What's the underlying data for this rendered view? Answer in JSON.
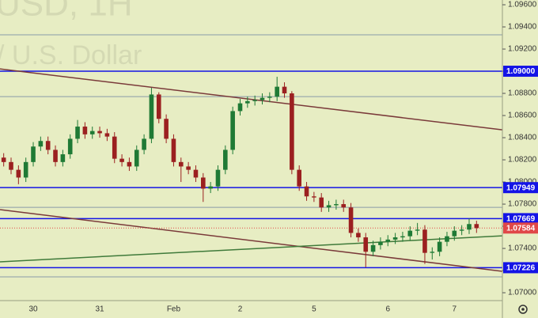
{
  "chart_data": {
    "type": "candlestick",
    "watermark": "USD, 1H",
    "watermark_subtitle": "/ U.S. Dollar",
    "categories": [
      null,
      null,
      null,
      null,
      "30",
      null,
      null,
      null,
      null,
      null,
      null,
      null,
      null,
      "31",
      null,
      null,
      null,
      null,
      null,
      null,
      null,
      null,
      null,
      "Feb",
      null,
      null,
      null,
      null,
      null,
      null,
      null,
      null,
      "2",
      null,
      null,
      null,
      null,
      null,
      null,
      null,
      null,
      null,
      "5",
      null,
      null,
      null,
      null,
      null,
      null,
      null,
      null,
      null,
      "6",
      null,
      null,
      null,
      null,
      null,
      null,
      null,
      null,
      "7",
      null,
      null,
      null
    ],
    "open": [
      1.0822,
      1.0818,
      1.0811,
      1.0804,
      1.0818,
      1.0832,
      1.0837,
      1.0829,
      1.0818,
      1.0825,
      1.0839,
      1.085,
      1.0843,
      1.0846,
      1.0844,
      1.0841,
      1.0821,
      1.0818,
      1.0814,
      1.0829,
      1.0839,
      1.0879,
      1.0857,
      1.0839,
      1.0818,
      1.0814,
      1.0811,
      1.0804,
      1.0794,
      1.0796,
      1.0811,
      1.0829,
      1.0864,
      1.0871,
      1.0873,
      1.0874,
      1.0876,
      1.0877,
      1.0886,
      1.088,
      1.0811,
      1.0796,
      1.0787,
      1.0786,
      1.0777,
      1.0779,
      1.078,
      1.0777,
      1.0754,
      1.075,
      1.0737,
      1.0743,
      1.0746,
      1.0748,
      1.075,
      1.0751,
      1.0756,
      1.0757,
      1.0736,
      1.0737,
      1.0746,
      1.0751,
      1.0756,
      1.0757,
      1.0762
    ],
    "high": [
      1.0826,
      1.0822,
      1.0815,
      1.0822,
      1.0836,
      1.0841,
      1.0841,
      1.0833,
      1.0829,
      1.0843,
      1.0856,
      1.0854,
      1.085,
      1.085,
      1.0848,
      1.0845,
      1.0825,
      1.0822,
      1.0833,
      1.0843,
      1.0885,
      1.0881,
      1.0861,
      1.0843,
      1.0822,
      1.0818,
      1.0815,
      1.0808,
      1.08,
      1.0815,
      1.0833,
      1.0868,
      1.0875,
      1.0877,
      1.0878,
      1.088,
      1.0881,
      1.0895,
      1.089,
      1.0882,
      1.0815,
      1.08,
      1.0791,
      1.079,
      1.0783,
      1.0784,
      1.0784,
      1.0781,
      1.0758,
      1.0754,
      1.0747,
      1.075,
      1.0752,
      1.0754,
      1.0755,
      1.076,
      1.0763,
      1.0761,
      1.0741,
      1.075,
      1.0755,
      1.076,
      1.0761,
      1.0767,
      1.0765
    ],
    "low": [
      1.0814,
      1.0807,
      1.0798,
      1.08,
      1.0814,
      1.0828,
      1.0825,
      1.0814,
      1.0814,
      1.0821,
      1.0835,
      1.0839,
      1.0839,
      1.084,
      1.0837,
      1.0817,
      1.0814,
      1.081,
      1.081,
      1.0825,
      1.0835,
      1.0853,
      1.0835,
      1.0814,
      1.08,
      1.0807,
      1.08,
      1.0782,
      1.079,
      1.0792,
      1.0807,
      1.0825,
      1.086,
      1.0867,
      1.0869,
      1.087,
      1.0872,
      1.0873,
      1.0876,
      1.0807,
      1.0792,
      1.0783,
      1.0782,
      1.0773,
      1.0773,
      1.0775,
      1.0773,
      1.075,
      1.0746,
      1.0723,
      1.0733,
      1.0739,
      1.0742,
      1.0744,
      1.0746,
      1.0747,
      1.0752,
      1.0726,
      1.073,
      1.0733,
      1.0742,
      1.0747,
      1.0752,
      1.0753,
      1.0754
    ],
    "close": [
      1.0818,
      1.0811,
      1.0804,
      1.0818,
      1.0832,
      1.0837,
      1.0829,
      1.0818,
      1.0825,
      1.0839,
      1.085,
      1.0843,
      1.0846,
      1.0844,
      1.0841,
      1.0821,
      1.0818,
      1.0814,
      1.0829,
      1.0839,
      1.0879,
      1.0857,
      1.0839,
      1.0818,
      1.0814,
      1.0811,
      1.0804,
      1.0794,
      1.0796,
      1.0811,
      1.0829,
      1.0864,
      1.0871,
      1.0873,
      1.0874,
      1.0876,
      1.0877,
      1.0886,
      1.088,
      1.0811,
      1.0796,
      1.0787,
      1.0786,
      1.0777,
      1.0779,
      1.078,
      1.0777,
      1.0754,
      1.075,
      1.0737,
      1.0743,
      1.0746,
      1.0748,
      1.075,
      1.0751,
      1.0756,
      1.0757,
      1.0736,
      1.0737,
      1.0746,
      1.0751,
      1.0756,
      1.0757,
      1.0762,
      1.07584
    ],
    "up_color": "#1f7a35",
    "down_color": "#9b2020",
    "ylim": [
      1.06929,
      1.09643
    ],
    "yticks": [
      {
        "value": 1.096,
        "label": "1.09600"
      },
      {
        "value": 1.094,
        "label": "1.09400"
      },
      {
        "value": 1.092,
        "label": "1.09200"
      },
      {
        "value": 1.09,
        "label": "1.09000"
      },
      {
        "value": 1.088,
        "label": "1.08800"
      },
      {
        "value": 1.086,
        "label": "1.08600"
      },
      {
        "value": 1.084,
        "label": "1.08400"
      },
      {
        "value": 1.082,
        "label": "1.08200"
      },
      {
        "value": 1.08,
        "label": "1.08000"
      },
      {
        "value": 1.078,
        "label": "1.07800"
      },
      {
        "value": 1.076,
        "label": "1.07600"
      },
      {
        "value": 1.074,
        "label": "1.07400"
      },
      {
        "value": 1.072,
        "label": "1.07200"
      },
      {
        "value": 1.07,
        "label": "1.07000"
      }
    ],
    "grid": false,
    "guides": {
      "color": "#8a9aa8",
      "values": [
        1.09329,
        1.08771,
        1.07771,
        1.07143
      ]
    },
    "levels": [
      {
        "value": 1.09,
        "label": "1.09000",
        "color": "#1414e6"
      },
      {
        "value": 1.07949,
        "label": "1.07949",
        "color": "#1414e6"
      },
      {
        "value": 1.07669,
        "label": "1.07669",
        "color": "#1414e6"
      },
      {
        "value": 1.07226,
        "label": "1.07226",
        "color": "#1414e6"
      }
    ],
    "last_price": {
      "value": 1.07584,
      "label": "1.07584",
      "color": "#e04848"
    },
    "trend_lines": [
      {
        "color": "#7a3a3a",
        "values": [
          1.09021,
          1.08471
        ]
      },
      {
        "color": "#7a3a3a",
        "values": [
          1.0775,
          1.07193
        ]
      },
      {
        "color": "#3f7a3a",
        "values": [
          1.07279,
          1.07514
        ]
      }
    ]
  }
}
